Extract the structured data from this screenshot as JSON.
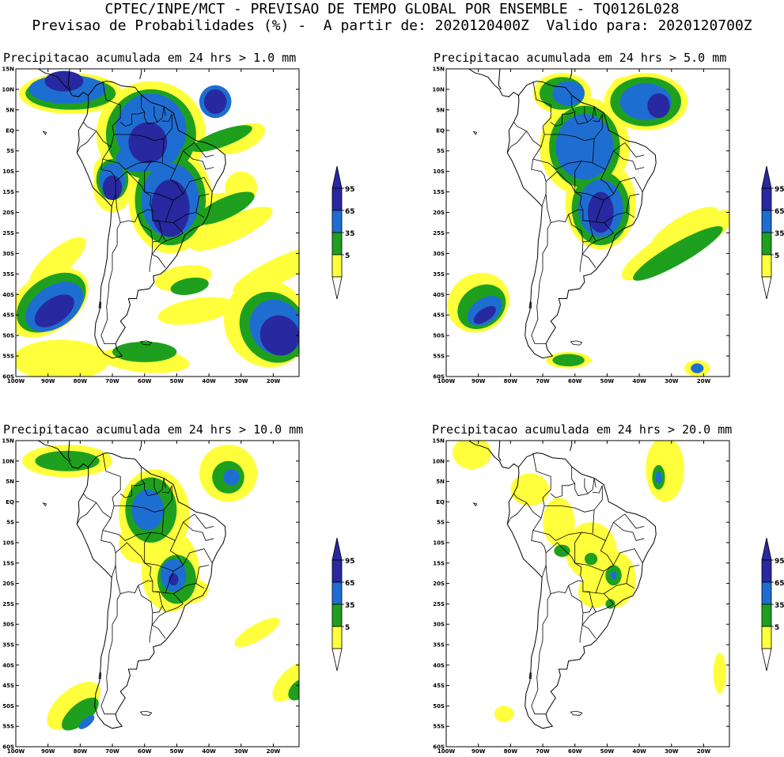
{
  "header": {
    "line1": "CPTEC/INPE/MCT - PREVISAO DE TEMPO GLOBAL POR ENSEMBLE - TQ0126L028",
    "line2": "Previsao de Probabilidades (%) -  A partir de: 2020120400Z  Valido para: 2020120700Z"
  },
  "lat_labels": [
    "15N",
    "10N",
    "5N",
    "EQ",
    "5S",
    "10S",
    "15S",
    "20S",
    "25S",
    "30S",
    "35S",
    "40S",
    "45S",
    "50S",
    "55S",
    "60S"
  ],
  "lon_labels": [
    "100W",
    "90W",
    "80W",
    "70W",
    "60W",
    "50W",
    "40W",
    "30W",
    "20W"
  ],
  "colors": {
    "c5": "#ffff3c",
    "c35": "#1ea01e",
    "c65": "#1e6ed2",
    "c95": "#2828a0"
  },
  "colorbar": {
    "labels": [
      "95",
      "65",
      "35",
      "5"
    ]
  },
  "panels": [
    {
      "title": "Precipitacao acumulada em 24 hrs > 1.0 mm",
      "threshold_mm": 1.0
    },
    {
      "title": "Precipitacao acumulada em 24 hrs > 5.0 mm",
      "threshold_mm": 5.0
    },
    {
      "title": "Precipitacao acumulada em 24 hrs > 10.0 mm",
      "threshold_mm": 10.0
    },
    {
      "title": "Precipitacao acumulada em 24 hrs > 20.0 mm",
      "threshold_mm": 20.0
    }
  ]
}
